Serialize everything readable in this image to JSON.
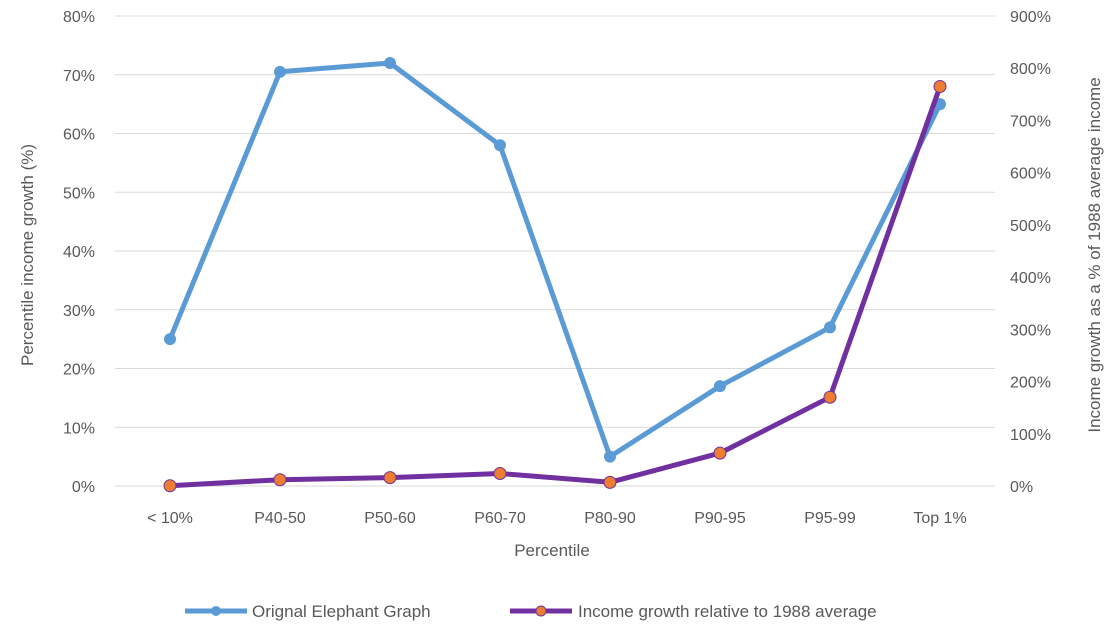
{
  "chart_data": {
    "type": "line",
    "categories": [
      "< 10%",
      "P40-50",
      "P50-60",
      "P60-70",
      "P80-90",
      "P90-95",
      "P95-99",
      "Top 1%"
    ],
    "xlabel": "Percentile",
    "ylabel": "Percentile income growth (%)",
    "y2label": "Income growth as a % of 1988 average income",
    "ylim": [
      0,
      80
    ],
    "y2lim": [
      0,
      900
    ],
    "yticks": [
      "0%",
      "10%",
      "20%",
      "30%",
      "40%",
      "50%",
      "60%",
      "70%",
      "80%"
    ],
    "y2ticks": [
      "0%",
      "100%",
      "200%",
      "300%",
      "400%",
      "500%",
      "600%",
      "700%",
      "800%",
      "900%"
    ],
    "grid": true,
    "legend_position": "bottom",
    "series": [
      {
        "name": "Orignal Elephant Graph",
        "axis": "left",
        "color": "#5B9BD5",
        "marker_color": "#5B9BD5",
        "values": [
          25,
          70.5,
          72,
          58,
          5,
          17,
          27,
          65
        ]
      },
      {
        "name": "Income growth relative to 1988 average",
        "axis": "right",
        "color": "#7030A0",
        "marker_color": "#ED7D31",
        "values": [
          0.5,
          12,
          16,
          24,
          7,
          63,
          170,
          765
        ]
      }
    ]
  }
}
